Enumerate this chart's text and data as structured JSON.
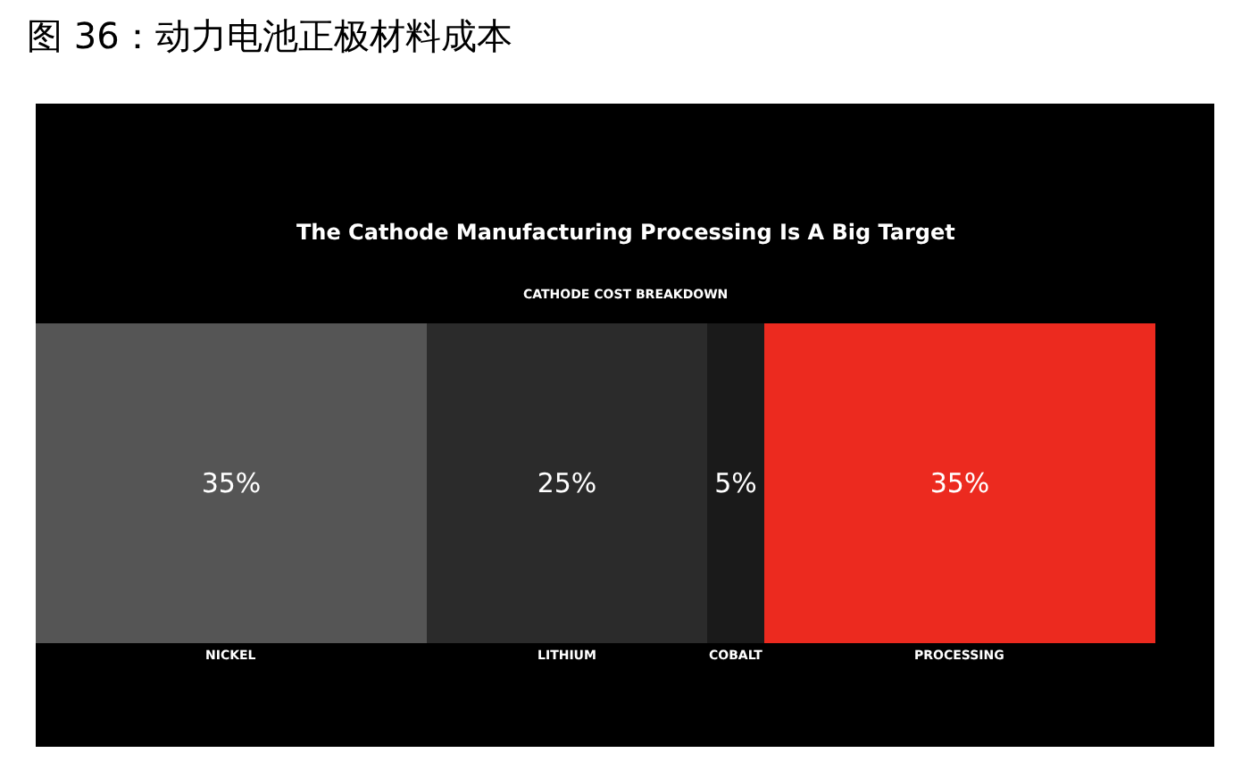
{
  "chart_data": {
    "type": "bar",
    "stacked": true,
    "orientation": "horizontal",
    "title": "图 36：动力电池正极材料成本",
    "subtitle": "The Cathode Manufacturing Processing Is A Big Target",
    "annotations": [
      "CATHODE COST BREAKDOWN"
    ],
    "categories": [
      null
    ],
    "series": [
      {
        "name": "NICKEL",
        "color": "#555555",
        "values": [
          35
        ],
        "value_labels": [
          "35%"
        ]
      },
      {
        "name": "LITHIUM",
        "color": "#2b2b2b",
        "values": [
          25
        ],
        "value_labels": [
          "25%"
        ]
      },
      {
        "name": "COBALT",
        "color": "#1a1a1a",
        "values": [
          5
        ],
        "value_labels": [
          "5%"
        ]
      },
      {
        "name": "PROCESSING",
        "color": "#ec2a1f",
        "values": [
          35
        ],
        "value_labels": [
          "35%"
        ]
      }
    ],
    "legend": false
  }
}
